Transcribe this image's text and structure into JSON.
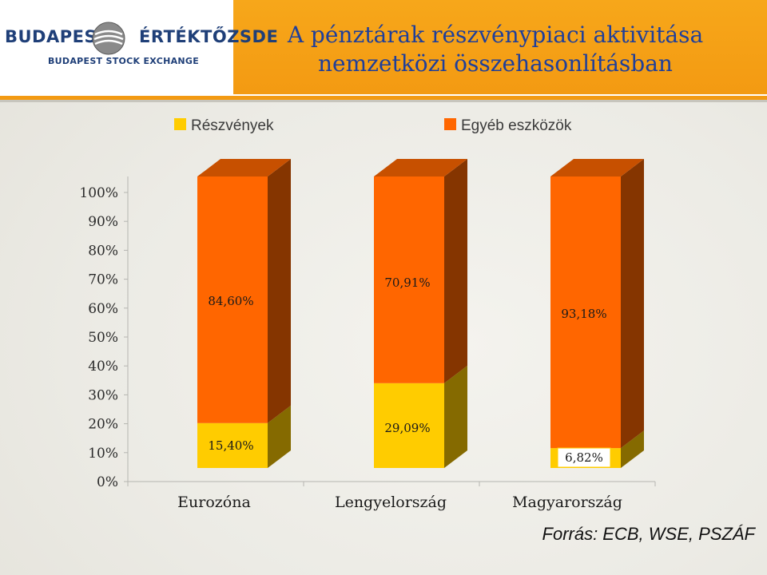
{
  "header": {
    "logo_main": "BUDAPESTI",
    "logo_second": "ÉRTÉKTŐZSDE",
    "logo_sub": "BUDAPEST STOCK EXCHANGE",
    "title_line1": "A pénztárak részvénypiaci aktivitása",
    "title_line2": "nemzetközi összehasonlításban"
  },
  "colors": {
    "accent_orange": "#f39a12",
    "title_blue": "#1f3f9a",
    "series_shares": "#ffcc00",
    "series_other": "#ff6600"
  },
  "chart_data": {
    "type": "bar",
    "stacked": true,
    "three_d": true,
    "categories": [
      "Eurozóna",
      "Lengyelország",
      "Magyarország"
    ],
    "series": [
      {
        "name": "Részvények",
        "color": "#ffcc00",
        "values": [
          15.4,
          29.09,
          6.82
        ],
        "labels": [
          "15,40%",
          "29,09%",
          "6,82%"
        ]
      },
      {
        "name": "Egyéb eszközök",
        "color": "#ff6600",
        "values": [
          84.6,
          70.91,
          93.18
        ],
        "labels": [
          "84,60%",
          "70,91%",
          "93,18%"
        ]
      }
    ],
    "ylim": [
      0,
      100
    ],
    "yticks": [
      0,
      10,
      20,
      30,
      40,
      50,
      60,
      70,
      80,
      90,
      100
    ],
    "ytick_labels": [
      "0%",
      "10%",
      "20%",
      "30%",
      "40%",
      "50%",
      "60%",
      "70%",
      "80%",
      "90%",
      "100%"
    ],
    "legend_position": "top",
    "grid": false
  },
  "source": "Forrás: ECB, WSE, PSZÁF"
}
